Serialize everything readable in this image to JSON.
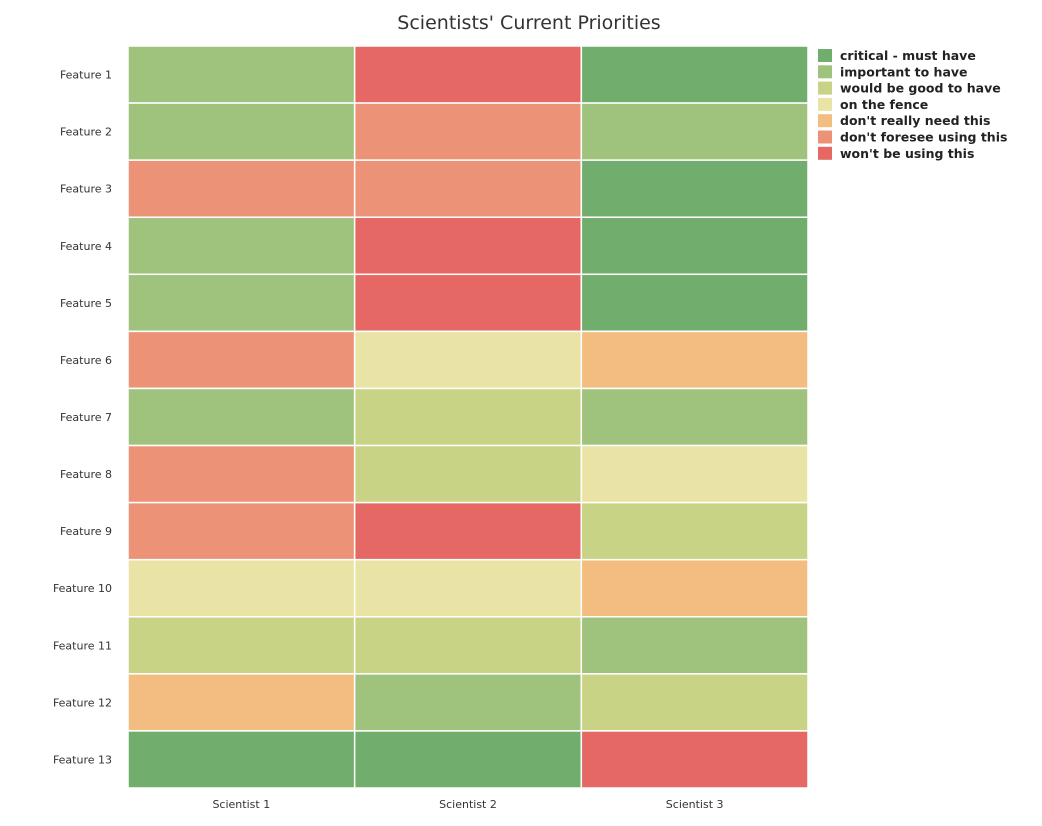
{
  "chart_data": {
    "type": "heatmap",
    "title": "Scientists' Current Priorities",
    "x_categories": [
      "Scientist 1",
      "Scientist 2",
      "Scientist 3"
    ],
    "y_categories": [
      "Feature 1",
      "Feature 2",
      "Feature 3",
      "Feature 4",
      "Feature 5",
      "Feature 6",
      "Feature 7",
      "Feature 8",
      "Feature 9",
      "Feature 10",
      "Feature 11",
      "Feature 12",
      "Feature 13"
    ],
    "levels": [
      {
        "label": "critical - must have",
        "color": "#71ae6d"
      },
      {
        "label": "important to have",
        "color": "#9fc37c"
      },
      {
        "label": "would be good to have",
        "color": "#c9d386"
      },
      {
        "label": "on the fence",
        "color": "#e9e4a5"
      },
      {
        "label": "don't really need this",
        "color": "#f3bc80"
      },
      {
        "label": "don't foresee using this",
        "color": "#ec9377"
      },
      {
        "label": "won't be using this",
        "color": "#e56864"
      }
    ],
    "values": [
      [
        1,
        6,
        0
      ],
      [
        1,
        5,
        1
      ],
      [
        5,
        5,
        0
      ],
      [
        1,
        6,
        0
      ],
      [
        1,
        6,
        0
      ],
      [
        5,
        3,
        4
      ],
      [
        1,
        2,
        1
      ],
      [
        5,
        2,
        3
      ],
      [
        5,
        6,
        2
      ],
      [
        3,
        3,
        4
      ],
      [
        2,
        2,
        1
      ],
      [
        4,
        1,
        2
      ],
      [
        0,
        0,
        6
      ]
    ],
    "legend_position": "top-right",
    "grid": false
  }
}
